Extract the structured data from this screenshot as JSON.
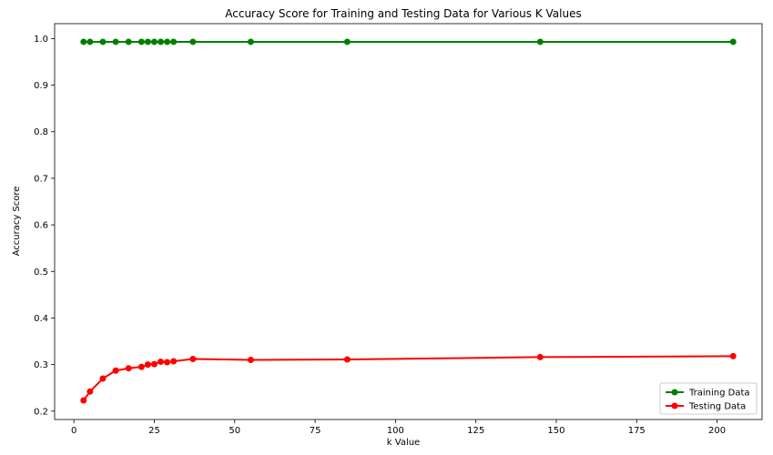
{
  "chart_data": {
    "type": "line",
    "title": "Accuracy Score for Training and Testing Data for Various K Values",
    "xlabel": "k Value",
    "ylabel": "Accuracy Score",
    "xlim": [
      -6,
      214
    ],
    "ylim": [
      0.182,
      1.032
    ],
    "xticks": [
      0,
      25,
      50,
      75,
      100,
      125,
      150,
      175,
      200
    ],
    "yticks": [
      0.2,
      0.3,
      0.4,
      0.5,
      0.6,
      0.7,
      0.8,
      0.9,
      1.0
    ],
    "ytick_labels": [
      "0.2",
      "0.3",
      "0.4",
      "0.5",
      "0.6",
      "0.7",
      "0.8",
      "0.9",
      "1.0"
    ],
    "grid": false,
    "legend_position": "lower-right",
    "x": [
      3,
      5,
      9,
      13,
      17,
      21,
      23,
      25,
      27,
      29,
      31,
      37,
      55,
      85,
      145,
      205
    ],
    "series": [
      {
        "name": "Training Data",
        "color": "#008000",
        "values": [
          0.993,
          0.993,
          0.993,
          0.993,
          0.993,
          0.993,
          0.993,
          0.993,
          0.993,
          0.993,
          0.993,
          0.993,
          0.993,
          0.993,
          0.993,
          0.993
        ]
      },
      {
        "name": "Testing Data",
        "color": "#ff0000",
        "values": [
          0.223,
          0.242,
          0.27,
          0.287,
          0.292,
          0.295,
          0.3,
          0.301,
          0.306,
          0.305,
          0.307,
          0.312,
          0.31,
          0.311,
          0.316,
          0.318
        ]
      }
    ]
  }
}
